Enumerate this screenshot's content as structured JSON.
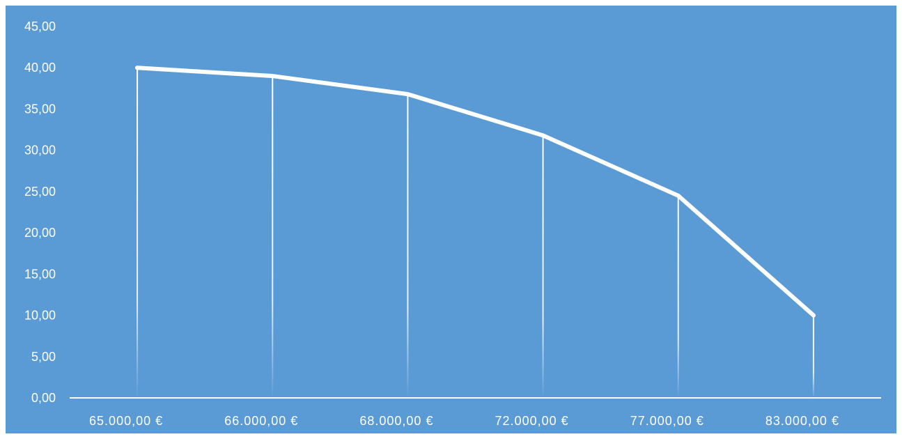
{
  "colors": {
    "background": "#5b9bd5",
    "line": "#ffffff",
    "axis": "#ffffff"
  },
  "chart_data": {
    "type": "line",
    "title": "",
    "xlabel": "",
    "ylabel": "",
    "categories": [
      "65.000,00 €",
      "66.000,00 €",
      "68.000,00 €",
      "72.000,00 €",
      "77.000,00 €",
      "83.000,00 €"
    ],
    "series": [
      {
        "values": [
          40,
          39,
          36.8,
          31.8,
          24.5,
          10
        ]
      }
    ],
    "ylim": [
      0,
      45
    ],
    "yticks": [
      0,
      5,
      10,
      15,
      20,
      25,
      30,
      35,
      40,
      45
    ],
    "ytick_labels": [
      "0,00",
      "5,00",
      "10,00",
      "15,00",
      "20,00",
      "25,00",
      "30,00",
      "35,00",
      "40,00",
      "45,00"
    ],
    "drop_lines": true,
    "grid": false,
    "legend": "none"
  }
}
